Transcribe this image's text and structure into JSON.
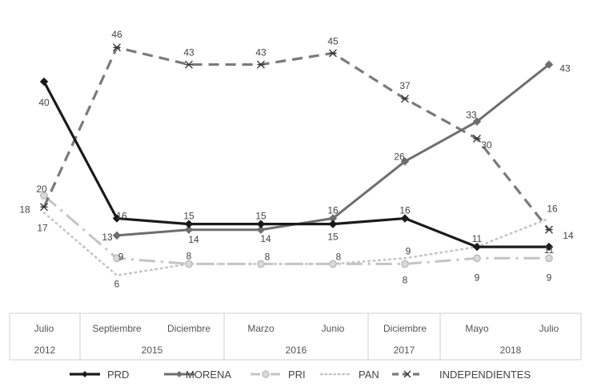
{
  "chart_data": {
    "type": "line",
    "title": "",
    "xlabel": "",
    "ylabel": "",
    "ylim": [
      0,
      50
    ],
    "grid": false,
    "legend_position": "bottom",
    "categories": [
      "Julio",
      "Septiembre",
      "Diciembre",
      "Marzo",
      "Junio",
      "Diciembre",
      "Mayo",
      "Julio"
    ],
    "year_groups": [
      {
        "label": "2012",
        "start": 0,
        "end": 0
      },
      {
        "label": "2015",
        "start": 1,
        "end": 2
      },
      {
        "label": "2016",
        "start": 3,
        "end": 4
      },
      {
        "label": "2017",
        "start": 5,
        "end": 5
      },
      {
        "label": "2018",
        "start": 6,
        "end": 7
      }
    ],
    "series": [
      {
        "name": "PRD",
        "values": [
          40,
          16,
          15,
          15,
          15,
          16,
          11,
          11
        ],
        "color": "#1a1a1a",
        "style": "solid",
        "marker": "diamond"
      },
      {
        "name": "MORENA",
        "values": [
          null,
          13,
          14,
          14,
          16,
          26,
          33,
          43
        ],
        "color": "#6e6e6e",
        "style": "solid",
        "marker": "diamond"
      },
      {
        "name": "PRI",
        "values": [
          20,
          9,
          8,
          8,
          8,
          8,
          9,
          9
        ],
        "color": "#c4c4c4",
        "style": "dashdot",
        "marker": "circle"
      },
      {
        "name": "PAN",
        "values": [
          17,
          6,
          8,
          8,
          8,
          9,
          11,
          16
        ],
        "color": "#c4c4c4",
        "style": "dotted",
        "marker": "none"
      },
      {
        "name": "INDEPENDIENTES",
        "values": [
          18,
          46,
          43,
          43,
          45,
          37,
          30,
          14
        ],
        "color": "#7a7a7a",
        "style": "dashed",
        "marker": "x"
      }
    ],
    "data_labels": [
      {
        "series": "PRD",
        "index": 0,
        "text": "40"
      },
      {
        "series": "PRD",
        "index": 1,
        "text": "16"
      },
      {
        "series": "PRD",
        "index": 2,
        "text": "15"
      },
      {
        "series": "PRD",
        "index": 3,
        "text": "15"
      },
      {
        "series": "PRD",
        "index": 4,
        "text": "15"
      },
      {
        "series": "PRD",
        "index": 5,
        "text": "16"
      },
      {
        "series": "PRD",
        "index": 6,
        "text": "11"
      },
      {
        "series": "PRD",
        "index": 7,
        "text": "11"
      },
      {
        "series": "MORENA",
        "index": 1,
        "text": "13"
      },
      {
        "series": "MORENA",
        "index": 2,
        "text": "14"
      },
      {
        "series": "MORENA",
        "index": 3,
        "text": "14"
      },
      {
        "series": "MORENA",
        "index": 4,
        "text": "16"
      },
      {
        "series": "MORENA",
        "index": 5,
        "text": "26"
      },
      {
        "series": "MORENA",
        "index": 6,
        "text": "33"
      },
      {
        "series": "MORENA",
        "index": 7,
        "text": "43"
      },
      {
        "series": "PRI",
        "index": 0,
        "text": "20"
      },
      {
        "series": "PRI",
        "index": 1,
        "text": "9"
      },
      {
        "series": "PRI",
        "index": 2,
        "text": "8"
      },
      {
        "series": "PRI",
        "index": 3,
        "text": "8"
      },
      {
        "series": "PRI",
        "index": 4,
        "text": "8"
      },
      {
        "series": "PRI",
        "index": 5,
        "text": "8"
      },
      {
        "series": "PRI",
        "index": 6,
        "text": "9"
      },
      {
        "series": "PRI",
        "index": 7,
        "text": "9"
      },
      {
        "series": "PAN",
        "index": 0,
        "text": "17"
      },
      {
        "series": "PAN",
        "index": 1,
        "text": "6"
      },
      {
        "series": "PAN",
        "index": 5,
        "text": "9"
      },
      {
        "series": "PAN",
        "index": 7,
        "text": "16"
      },
      {
        "series": "INDEPENDIENTES",
        "index": 0,
        "text": "18"
      },
      {
        "series": "INDEPENDIENTES",
        "index": 1,
        "text": "46"
      },
      {
        "series": "INDEPENDIENTES",
        "index": 2,
        "text": "43"
      },
      {
        "series": "INDEPENDIENTES",
        "index": 3,
        "text": "43"
      },
      {
        "series": "INDEPENDIENTES",
        "index": 4,
        "text": "45"
      },
      {
        "series": "INDEPENDIENTES",
        "index": 5,
        "text": "37"
      },
      {
        "series": "INDEPENDIENTES",
        "index": 6,
        "text": "30"
      },
      {
        "series": "INDEPENDIENTES",
        "index": 7,
        "text": "14"
      }
    ]
  }
}
